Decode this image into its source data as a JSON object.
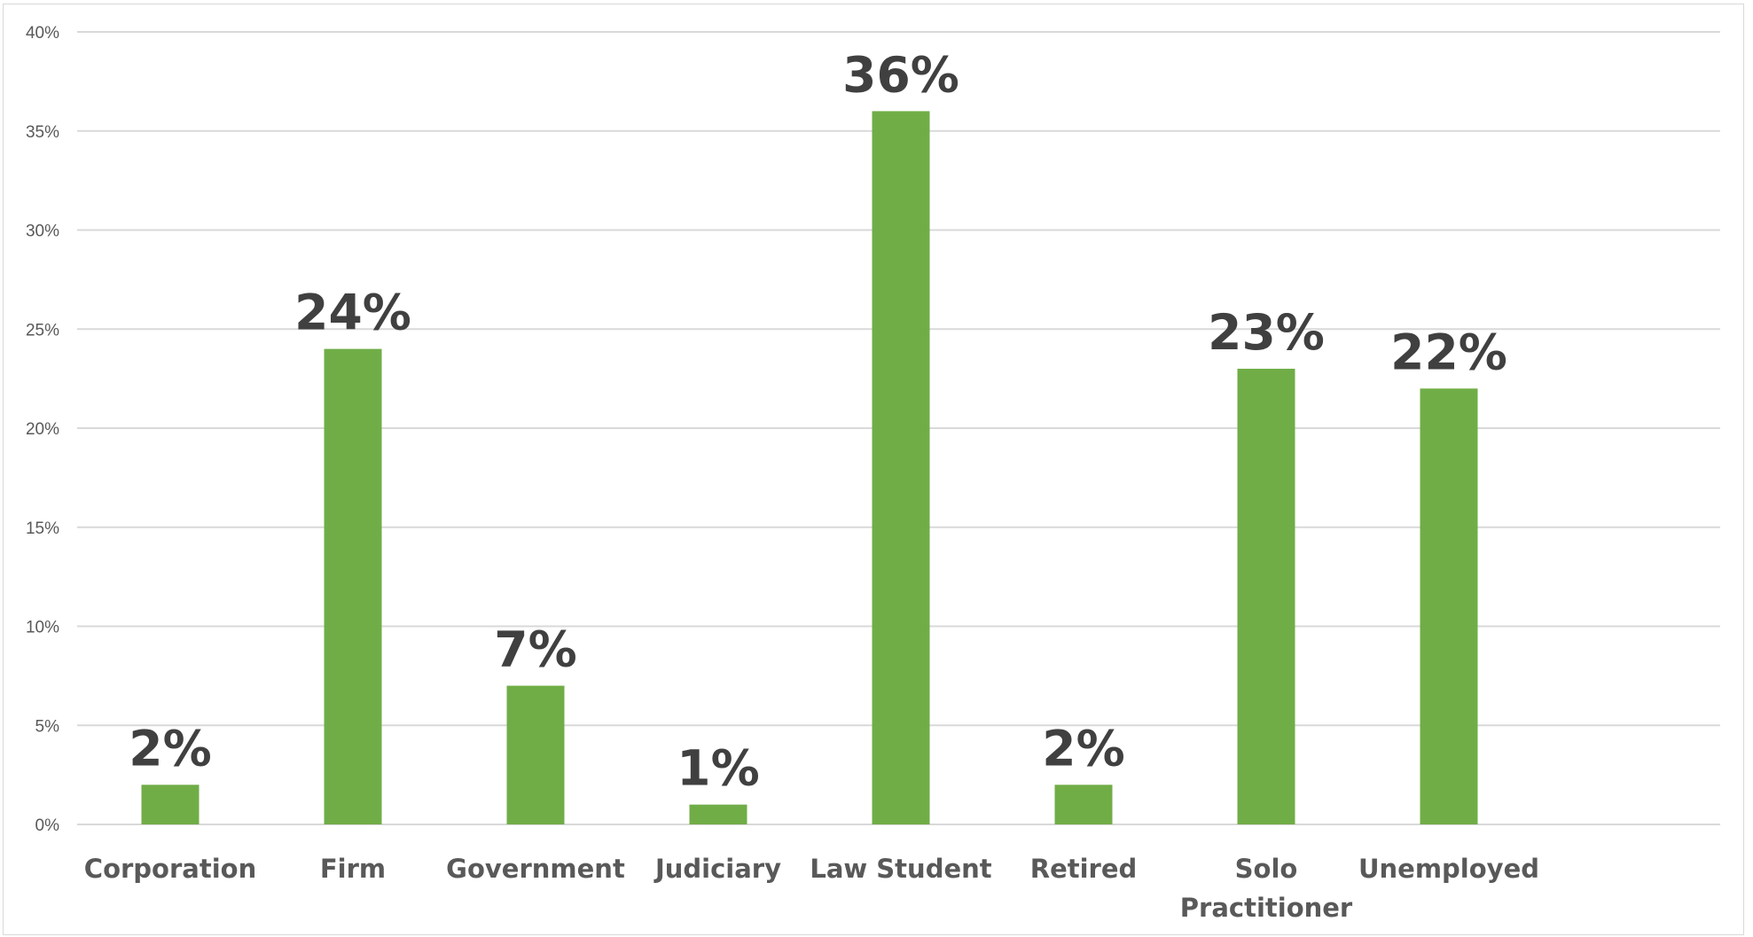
{
  "chart_data": {
    "type": "bar",
    "categories": [
      "Corporation",
      "Firm",
      "Government",
      "Judiciary",
      "Law Student",
      "Retired",
      "Solo Practitioner",
      "Unemployed"
    ],
    "values": [
      2,
      24,
      7,
      1,
      36,
      2,
      23,
      22
    ],
    "data_labels": [
      "2%",
      "24%",
      "7%",
      "1%",
      "36%",
      "2%",
      "23%",
      "22%"
    ],
    "y_ticks": [
      0,
      5,
      10,
      15,
      20,
      25,
      30,
      35,
      40
    ],
    "y_tick_labels": [
      "0%",
      "5%",
      "10%",
      "15%",
      "20%",
      "25%",
      "30%",
      "35%",
      "40%"
    ],
    "ylim": [
      0,
      40
    ],
    "title": "",
    "xlabel": "",
    "ylabel": "",
    "grid": true,
    "legend": "none",
    "bar_color": "#70AD47",
    "gridline_color": "#D9D9D9"
  }
}
